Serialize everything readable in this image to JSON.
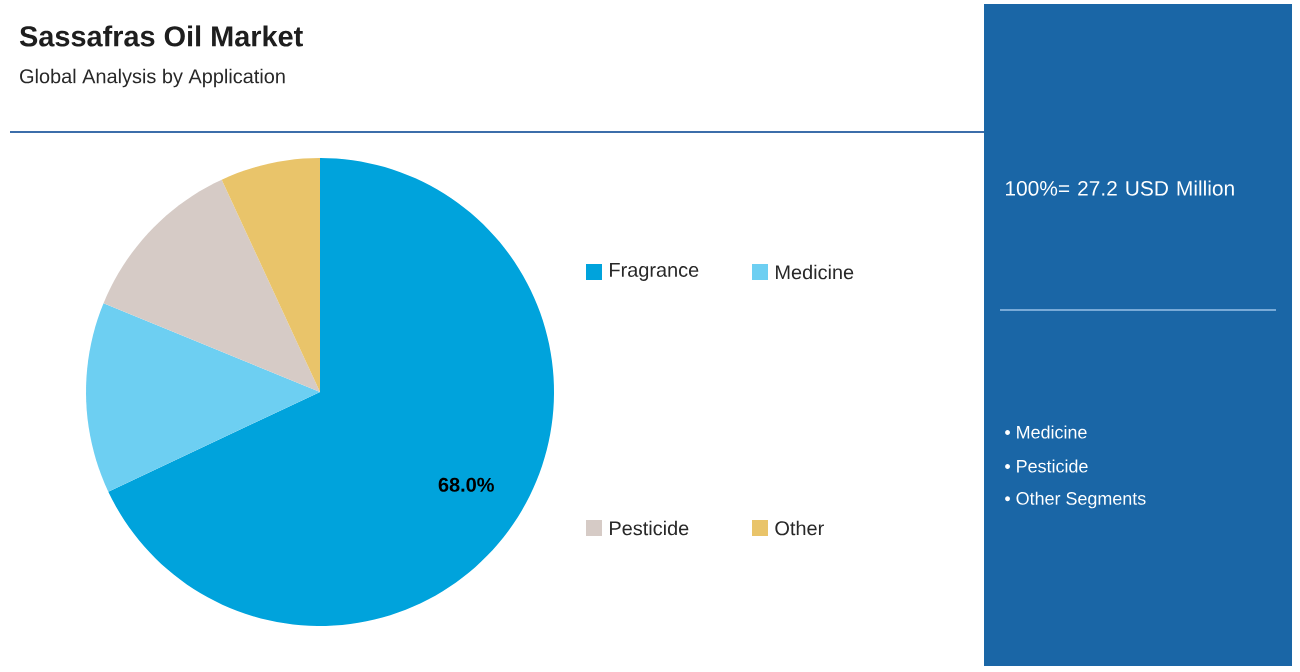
{
  "chart_data": {
    "type": "pie",
    "title": "Sassafras Oil Market",
    "subtitle": "Global Analysis by Application",
    "categories": [
      "Fragrance",
      "Medicine",
      "Pesticide",
      "Other"
    ],
    "values": [
      68.0,
      13.2,
      11.9,
      6.9
    ],
    "colors": [
      "#00a3dc",
      "#6dcff2",
      "#d6cbc6",
      "#e9c46a"
    ],
    "value_labels": [
      "68.0%",
      null,
      null,
      null
    ],
    "legend": "right",
    "annotations": [
      "100%= 27.2 USD Million",
      "• Medicine",
      "• Pesticide",
      "• Other Segments"
    ]
  }
}
